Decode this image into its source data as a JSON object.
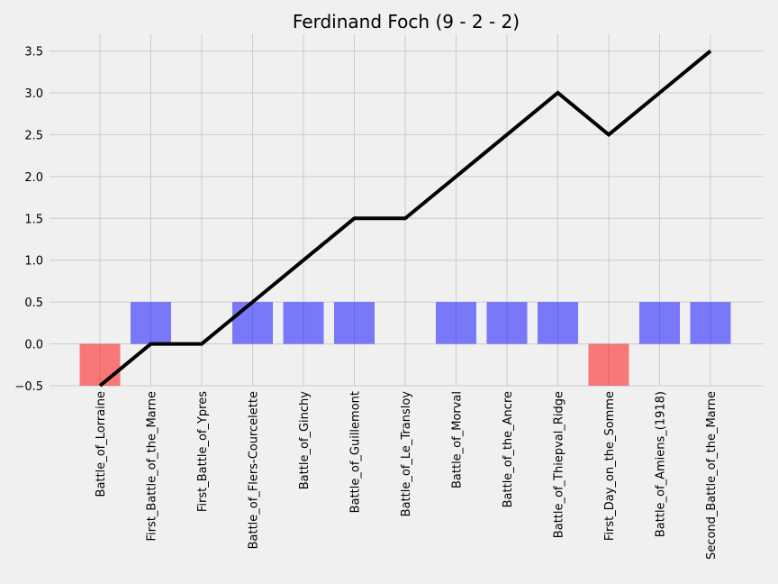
{
  "chart_data": {
    "type": "bar",
    "title": "Ferdinand Foch (9 - 2 - 2)",
    "xlabel": "",
    "ylabel": "",
    "ylim": [
      -0.5,
      3.7
    ],
    "yticks": [
      "−0.5",
      "0.0",
      "0.5",
      "1.0",
      "1.5",
      "2.0",
      "2.5",
      "3.0",
      "3.5"
    ],
    "ytick_values": [
      -0.5,
      0.0,
      0.5,
      1.0,
      1.5,
      2.0,
      2.5,
      3.0,
      3.5
    ],
    "grid": true,
    "categories": [
      "Battle_of_Lorraine",
      "First_Battle_of_the_Marne",
      "First_Battle_of_Ypres",
      "Battle_of_Flers-Courcelette",
      "Battle_of_Ginchy",
      "Battle_of_Guillemont",
      "Battle_of_Le_Transloy",
      "Battle_of_Morval",
      "Battle_of_the_Ancre",
      "Battle_of_Thiepval_Ridge",
      "First_Day_on_the_Somme",
      "Battle_of_Amiens_(1918)",
      "Second_Battle_of_the_Marne"
    ],
    "bars": [
      -0.5,
      0.5,
      0.0,
      0.5,
      0.5,
      0.5,
      0.0,
      0.5,
      0.5,
      0.5,
      -0.5,
      0.5,
      0.5
    ],
    "line": [
      -0.5,
      0.0,
      0.0,
      0.5,
      1.0,
      1.5,
      1.5,
      2.0,
      2.5,
      3.0,
      2.5,
      3.0,
      3.5
    ],
    "colors": {
      "positive": "#0000ff",
      "negative": "#ff0000",
      "line": "#000000",
      "background": "#f0f0f0",
      "grid": "#cbcbcb"
    }
  }
}
